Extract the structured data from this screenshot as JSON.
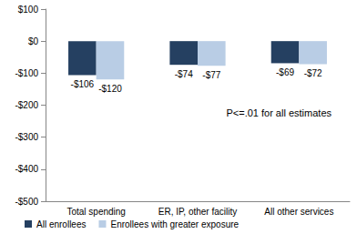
{
  "chart_data": {
    "type": "bar",
    "categories": [
      "Total spending",
      "ER, IP, other facility",
      "All other services"
    ],
    "series": [
      {
        "name": "All enrollees",
        "color": "#254061",
        "values": [
          -106,
          -74,
          -69
        ],
        "value_labels": [
          "-$106",
          "-$74",
          "-$69"
        ]
      },
      {
        "name": "Enrollees with greater exposure",
        "color": "#b9cde5",
        "values": [
          -120,
          -77,
          -72
        ],
        "value_labels": [
          "-$120",
          "-$77",
          "-$72"
        ]
      }
    ],
    "ylim": [
      -500,
      100
    ],
    "yticks": [
      {
        "value": -500,
        "label": "-$500"
      },
      {
        "value": -400,
        "label": "-$400"
      },
      {
        "value": -300,
        "label": "-$300"
      },
      {
        "value": -200,
        "label": "-$200"
      },
      {
        "value": -100,
        "label": "-$100"
      },
      {
        "value": 0,
        "label": "$0"
      },
      {
        "value": 100,
        "label": "$100"
      }
    ],
    "annotations": [
      "P<=.01 for all estimates"
    ],
    "grid": false,
    "legend": "bottom",
    "data_labels": true
  }
}
